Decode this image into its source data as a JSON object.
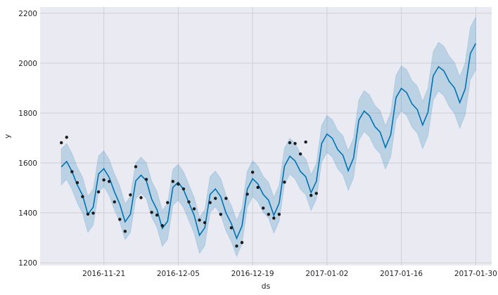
{
  "chart_data": {
    "type": "line",
    "title": "",
    "xlabel": "ds",
    "ylabel": "y",
    "xlim": [
      "2016-11-09",
      "2017-02-02"
    ],
    "ylim": [
      1189,
      2225
    ],
    "grid": true,
    "x_ticks": [
      "2016-11-21",
      "2016-12-05",
      "2016-12-19",
      "2017-01-02",
      "2017-01-16",
      "2017-01-30"
    ],
    "y_ticks": [
      1200,
      1400,
      1600,
      1800,
      2000,
      2200
    ],
    "colors": {
      "background": "#eaeaf2",
      "grid": "#ffffff",
      "forecast": "#0072b2",
      "interval": "#0072b2",
      "points": "#1a1a1a"
    },
    "observed": {
      "ds": [
        "2016-11-13",
        "2016-11-14",
        "2016-11-15",
        "2016-11-16",
        "2016-11-17",
        "2016-11-18",
        "2016-11-19",
        "2016-11-20",
        "2016-11-21",
        "2016-11-22",
        "2016-11-23",
        "2016-11-24",
        "2016-11-25",
        "2016-11-26",
        "2016-11-27",
        "2016-11-28",
        "2016-11-29",
        "2016-11-30",
        "2016-12-01",
        "2016-12-02",
        "2016-12-03",
        "2016-12-04",
        "2016-12-05",
        "2016-12-06",
        "2016-12-07",
        "2016-12-08",
        "2016-12-09",
        "2016-12-10",
        "2016-12-11",
        "2016-12-12",
        "2016-12-13",
        "2016-12-14",
        "2016-12-15",
        "2016-12-16",
        "2016-12-17",
        "2016-12-18",
        "2016-12-19",
        "2016-12-20",
        "2016-12-21",
        "2016-12-22",
        "2016-12-23",
        "2016-12-24",
        "2016-12-25",
        "2016-12-26",
        "2016-12-27",
        "2016-12-28",
        "2016-12-29",
        "2016-12-30",
        "2016-12-31"
      ],
      "y": [
        1681,
        1703,
        1565,
        1521,
        1465,
        1395,
        1399,
        1484,
        1532,
        1526,
        1444,
        1374,
        1326,
        1472,
        1585,
        1461,
        1534,
        1402,
        1391,
        1349,
        1441,
        1526,
        1515,
        1496,
        1444,
        1416,
        1371,
        1361,
        1441,
        1458,
        1394,
        1458,
        1340,
        1267,
        1281,
        1475,
        1563,
        1502,
        1419,
        1394,
        1379,
        1394,
        1523,
        1681,
        1678,
        1636,
        1684,
        1470,
        1478
      ]
    },
    "forecast": {
      "ds": [
        "2016-11-13",
        "2016-11-14",
        "2016-11-15",
        "2016-11-16",
        "2016-11-17",
        "2016-11-18",
        "2016-11-19",
        "2016-11-20",
        "2016-11-21",
        "2016-11-22",
        "2016-11-23",
        "2016-11-24",
        "2016-11-25",
        "2016-11-26",
        "2016-11-27",
        "2016-11-28",
        "2016-11-29",
        "2016-11-30",
        "2016-12-01",
        "2016-12-02",
        "2016-12-03",
        "2016-12-04",
        "2016-12-05",
        "2016-12-06",
        "2016-12-07",
        "2016-12-08",
        "2016-12-09",
        "2016-12-10",
        "2016-12-11",
        "2016-12-12",
        "2016-12-13",
        "2016-12-14",
        "2016-12-15",
        "2016-12-16",
        "2016-12-17",
        "2016-12-18",
        "2016-12-19",
        "2016-12-20",
        "2016-12-21",
        "2016-12-22",
        "2016-12-23",
        "2016-12-24",
        "2016-12-25",
        "2016-12-26",
        "2016-12-27",
        "2016-12-28",
        "2016-12-29",
        "2016-12-30",
        "2016-12-31",
        "2017-01-01",
        "2017-01-02",
        "2017-01-03",
        "2017-01-04",
        "2017-01-05",
        "2017-01-06",
        "2017-01-07",
        "2017-01-08",
        "2017-01-09",
        "2017-01-10",
        "2017-01-11",
        "2017-01-12",
        "2017-01-13",
        "2017-01-14",
        "2017-01-15",
        "2017-01-16",
        "2017-01-17",
        "2017-01-18",
        "2017-01-19",
        "2017-01-20",
        "2017-01-21",
        "2017-01-22",
        "2017-01-23",
        "2017-01-24",
        "2017-01-25",
        "2017-01-26",
        "2017-01-27",
        "2017-01-28",
        "2017-01-29",
        "2017-01-30"
      ],
      "yhat": [
        1584,
        1606,
        1566,
        1512,
        1470,
        1394,
        1423,
        1556,
        1577,
        1542,
        1484,
        1435,
        1364,
        1394,
        1528,
        1551,
        1529,
        1455,
        1413,
        1338,
        1366,
        1502,
        1523,
        1493,
        1441,
        1390,
        1310,
        1340,
        1474,
        1496,
        1465,
        1399,
        1357,
        1298,
        1347,
        1495,
        1537,
        1516,
        1474,
        1451,
        1390,
        1439,
        1587,
        1627,
        1608,
        1566,
        1545,
        1481,
        1526,
        1678,
        1716,
        1699,
        1654,
        1631,
        1569,
        1620,
        1772,
        1808,
        1789,
        1746,
        1724,
        1662,
        1713,
        1862,
        1899,
        1882,
        1837,
        1814,
        1752,
        1803,
        1949,
        1986,
        1969,
        1927,
        1901,
        1842,
        1896,
        2039,
        2079
      ],
      "yhat_lower": [
        1512,
        1534,
        1494,
        1440,
        1398,
        1322,
        1351,
        1484,
        1505,
        1470,
        1412,
        1363,
        1292,
        1322,
        1456,
        1479,
        1457,
        1383,
        1341,
        1266,
        1294,
        1430,
        1451,
        1421,
        1369,
        1318,
        1238,
        1268,
        1402,
        1424,
        1393,
        1327,
        1285,
        1226,
        1275,
        1423,
        1465,
        1444,
        1402,
        1379,
        1318,
        1367,
        1515,
        1555,
        1536,
        1494,
        1473,
        1409,
        1454,
        1605,
        1642,
        1624,
        1577,
        1553,
        1490,
        1540,
        1691,
        1726,
        1705,
        1661,
        1638,
        1575,
        1625,
        1773,
        1809,
        1790,
        1744,
        1720,
        1657,
        1707,
        1852,
        1888,
        1870,
        1826,
        1799,
        1739,
        1792,
        1934,
        1973
      ],
      "yhat_upper": [
        1656,
        1678,
        1638,
        1584,
        1542,
        1466,
        1495,
        1628,
        1649,
        1614,
        1556,
        1507,
        1436,
        1466,
        1600,
        1623,
        1601,
        1527,
        1485,
        1410,
        1438,
        1574,
        1595,
        1565,
        1513,
        1462,
        1382,
        1412,
        1546,
        1568,
        1537,
        1471,
        1429,
        1370,
        1419,
        1567,
        1609,
        1588,
        1546,
        1523,
        1462,
        1511,
        1659,
        1699,
        1680,
        1638,
        1617,
        1553,
        1598,
        1751,
        1790,
        1774,
        1731,
        1709,
        1648,
        1700,
        1853,
        1890,
        1873,
        1831,
        1810,
        1749,
        1801,
        1951,
        1989,
        1974,
        1930,
        1908,
        1847,
        1899,
        2046,
        2084,
        2068,
        2028,
        2003,
        1945,
        2000,
        2144,
        2185
      ]
    }
  }
}
